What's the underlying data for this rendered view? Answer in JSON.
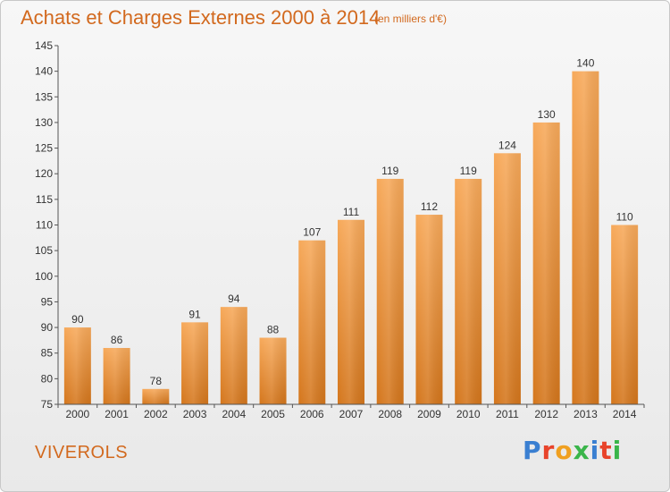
{
  "header": {
    "title": "Achats et Charges Externes 2000 à 2014",
    "subtitle": "(en milliers d'€)"
  },
  "footer": {
    "commune": "VIVEROLS",
    "logo": "Proxiti"
  },
  "colors": {
    "accent": "#d2691e",
    "bar_light": "#f7a95a",
    "bar_dark": "#d4761c"
  },
  "chart_data": {
    "type": "bar",
    "title": "Achats et Charges Externes 2000 à 2014",
    "subtitle": "(en milliers d'€)",
    "xlabel": "",
    "ylabel": "",
    "categories": [
      "2000",
      "2001",
      "2002",
      "2003",
      "2004",
      "2005",
      "2006",
      "2007",
      "2008",
      "2009",
      "2010",
      "2011",
      "2012",
      "2013",
      "2014"
    ],
    "values": [
      90,
      86,
      78,
      91,
      94,
      88,
      107,
      111,
      119,
      112,
      119,
      124,
      130,
      140,
      110
    ],
    "ylim": [
      75,
      145
    ],
    "yticks": [
      75,
      80,
      85,
      90,
      95,
      100,
      105,
      110,
      115,
      120,
      125,
      130,
      135,
      140,
      145
    ],
    "grid": false,
    "data_labels": true
  }
}
